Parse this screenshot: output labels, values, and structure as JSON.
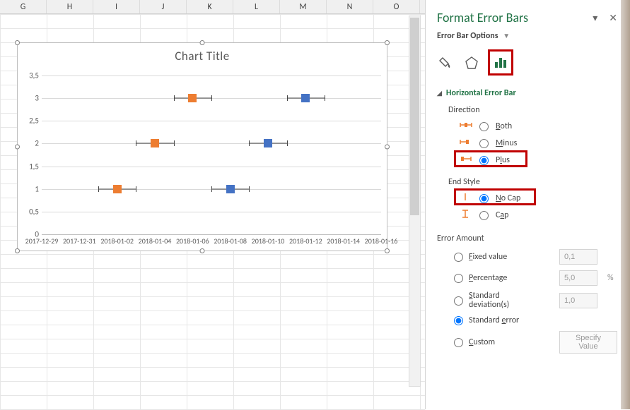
{
  "columns": [
    "G",
    "H",
    "I",
    "J",
    "K",
    "L",
    "M",
    "N",
    "O"
  ],
  "chart": {
    "title": "Chart Title",
    "ylim": [
      0,
      3.5
    ],
    "ytick_step": 0.5,
    "y_labels": [
      "0",
      "0,5",
      "1",
      "1,5",
      "2",
      "2,5",
      "3",
      "3,5"
    ],
    "x_labels": [
      "2017-12-29",
      "2017-12-31",
      "2018-01-02",
      "2018-01-04",
      "2018-01-06",
      "2018-01-08",
      "2018-01-10",
      "2018-01-12",
      "2018-01-14",
      "2018-01-16"
    ],
    "series": [
      {
        "color": "#ed7d31",
        "points": [
          {
            "xi": 2,
            "y": 1
          },
          {
            "xi": 3,
            "y": 2
          },
          {
            "xi": 4,
            "y": 3
          }
        ],
        "err_minus": 0.5,
        "err_plus": 0.5,
        "caps": true
      },
      {
        "color": "#4472c4",
        "points": [
          {
            "xi": 5,
            "y": 1
          },
          {
            "xi": 6,
            "y": 2
          },
          {
            "xi": 7,
            "y": 3
          }
        ],
        "err_minus": 0.5,
        "err_plus": 0.5,
        "caps": true
      }
    ],
    "grid_color": "#d9d9d9",
    "background": "#ffffff"
  },
  "pane": {
    "title": "Format Error Bars",
    "subtitle": "Error Bar Options",
    "section": "Horizontal Error Bar",
    "direction": {
      "label": "Direction",
      "both": "Both",
      "minus": "Minus",
      "plus": "Plus",
      "selected": "plus"
    },
    "endstyle": {
      "label": "End Style",
      "nocap": "No Cap",
      "cap": "Cap",
      "selected": "nocap"
    },
    "amount": {
      "label": "Error Amount",
      "fixed": "Fixed value",
      "fixed_val": "0,1",
      "percentage": "Percentage",
      "perc_val": "5,0",
      "perc_unit": "%",
      "stddev": "Standard deviation(s)",
      "stddev_val": "1,0",
      "stderr": "Standard error",
      "custom": "Custom",
      "specify": "Specify Value",
      "selected": "stderr"
    }
  }
}
